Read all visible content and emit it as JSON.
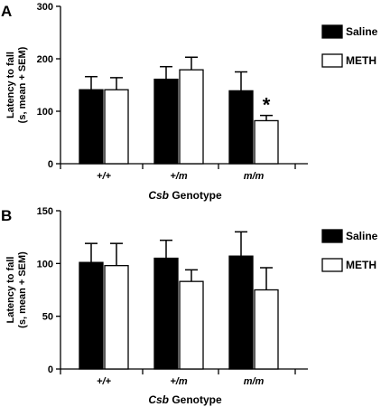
{
  "chart_data": [
    {
      "panel_label": "A",
      "type": "bar",
      "categories": [
        "+/+",
        "+/m",
        "m/m"
      ],
      "xlabel_italic": "Csb",
      "xlabel_rest": " Genotype",
      "ylabel_line1": "Latency to fall",
      "ylabel_line2": "(s, mean + SEM)",
      "ylim": [
        0,
        300
      ],
      "yticks": [
        0,
        100,
        200,
        300
      ],
      "series": [
        {
          "name": "Saline",
          "values": [
            141,
            161,
            139
          ],
          "errors": [
            25,
            24,
            36
          ],
          "fill": "#000000"
        },
        {
          "name": "METH",
          "values": [
            141,
            179,
            82
          ],
          "errors": [
            23,
            24,
            10
          ],
          "fill": "#ffffff"
        }
      ],
      "annotations": [
        {
          "text": "*",
          "category": 2,
          "series": 1
        }
      ]
    },
    {
      "panel_label": "B",
      "type": "bar",
      "categories": [
        "+/+",
        "+/m",
        "m/m"
      ],
      "xlabel_italic": "Csb",
      "xlabel_rest": " Genotype",
      "ylabel_line1": "Latency to fall",
      "ylabel_line2": "(s, mean + SEM)",
      "ylim": [
        0,
        150
      ],
      "yticks": [
        0,
        50,
        100,
        150
      ],
      "series": [
        {
          "name": "Saline",
          "values": [
            101,
            105,
            107
          ],
          "errors": [
            18,
            17,
            23
          ],
          "fill": "#000000"
        },
        {
          "name": "METH",
          "values": [
            98,
            83,
            75
          ],
          "errors": [
            21,
            11,
            21
          ],
          "fill": "#ffffff"
        }
      ],
      "annotations": []
    }
  ]
}
